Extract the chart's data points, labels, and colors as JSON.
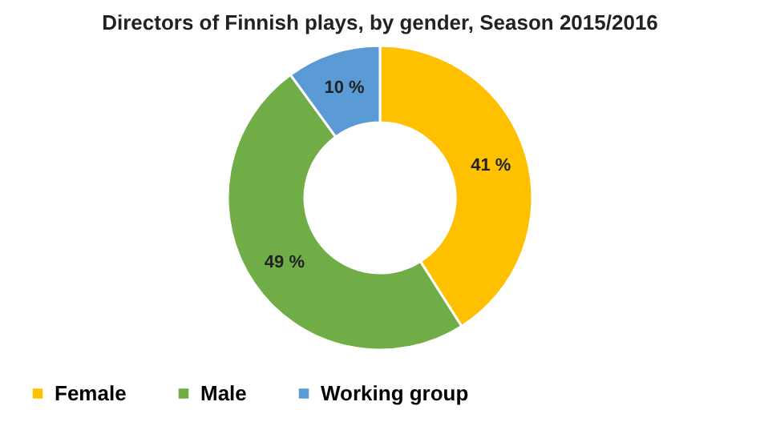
{
  "chart_data": {
    "type": "donut",
    "title": "Directors of Finnish plays, by gender, Season 2015/2016",
    "categories": [
      "Female",
      "Male",
      "Working group"
    ],
    "values": [
      41,
      49,
      10
    ],
    "value_labels": [
      "41 %",
      "49 %",
      "10 %"
    ],
    "colors": [
      "#ffc000",
      "#70ad47",
      "#5b9bd5"
    ],
    "legend": "bottom"
  }
}
